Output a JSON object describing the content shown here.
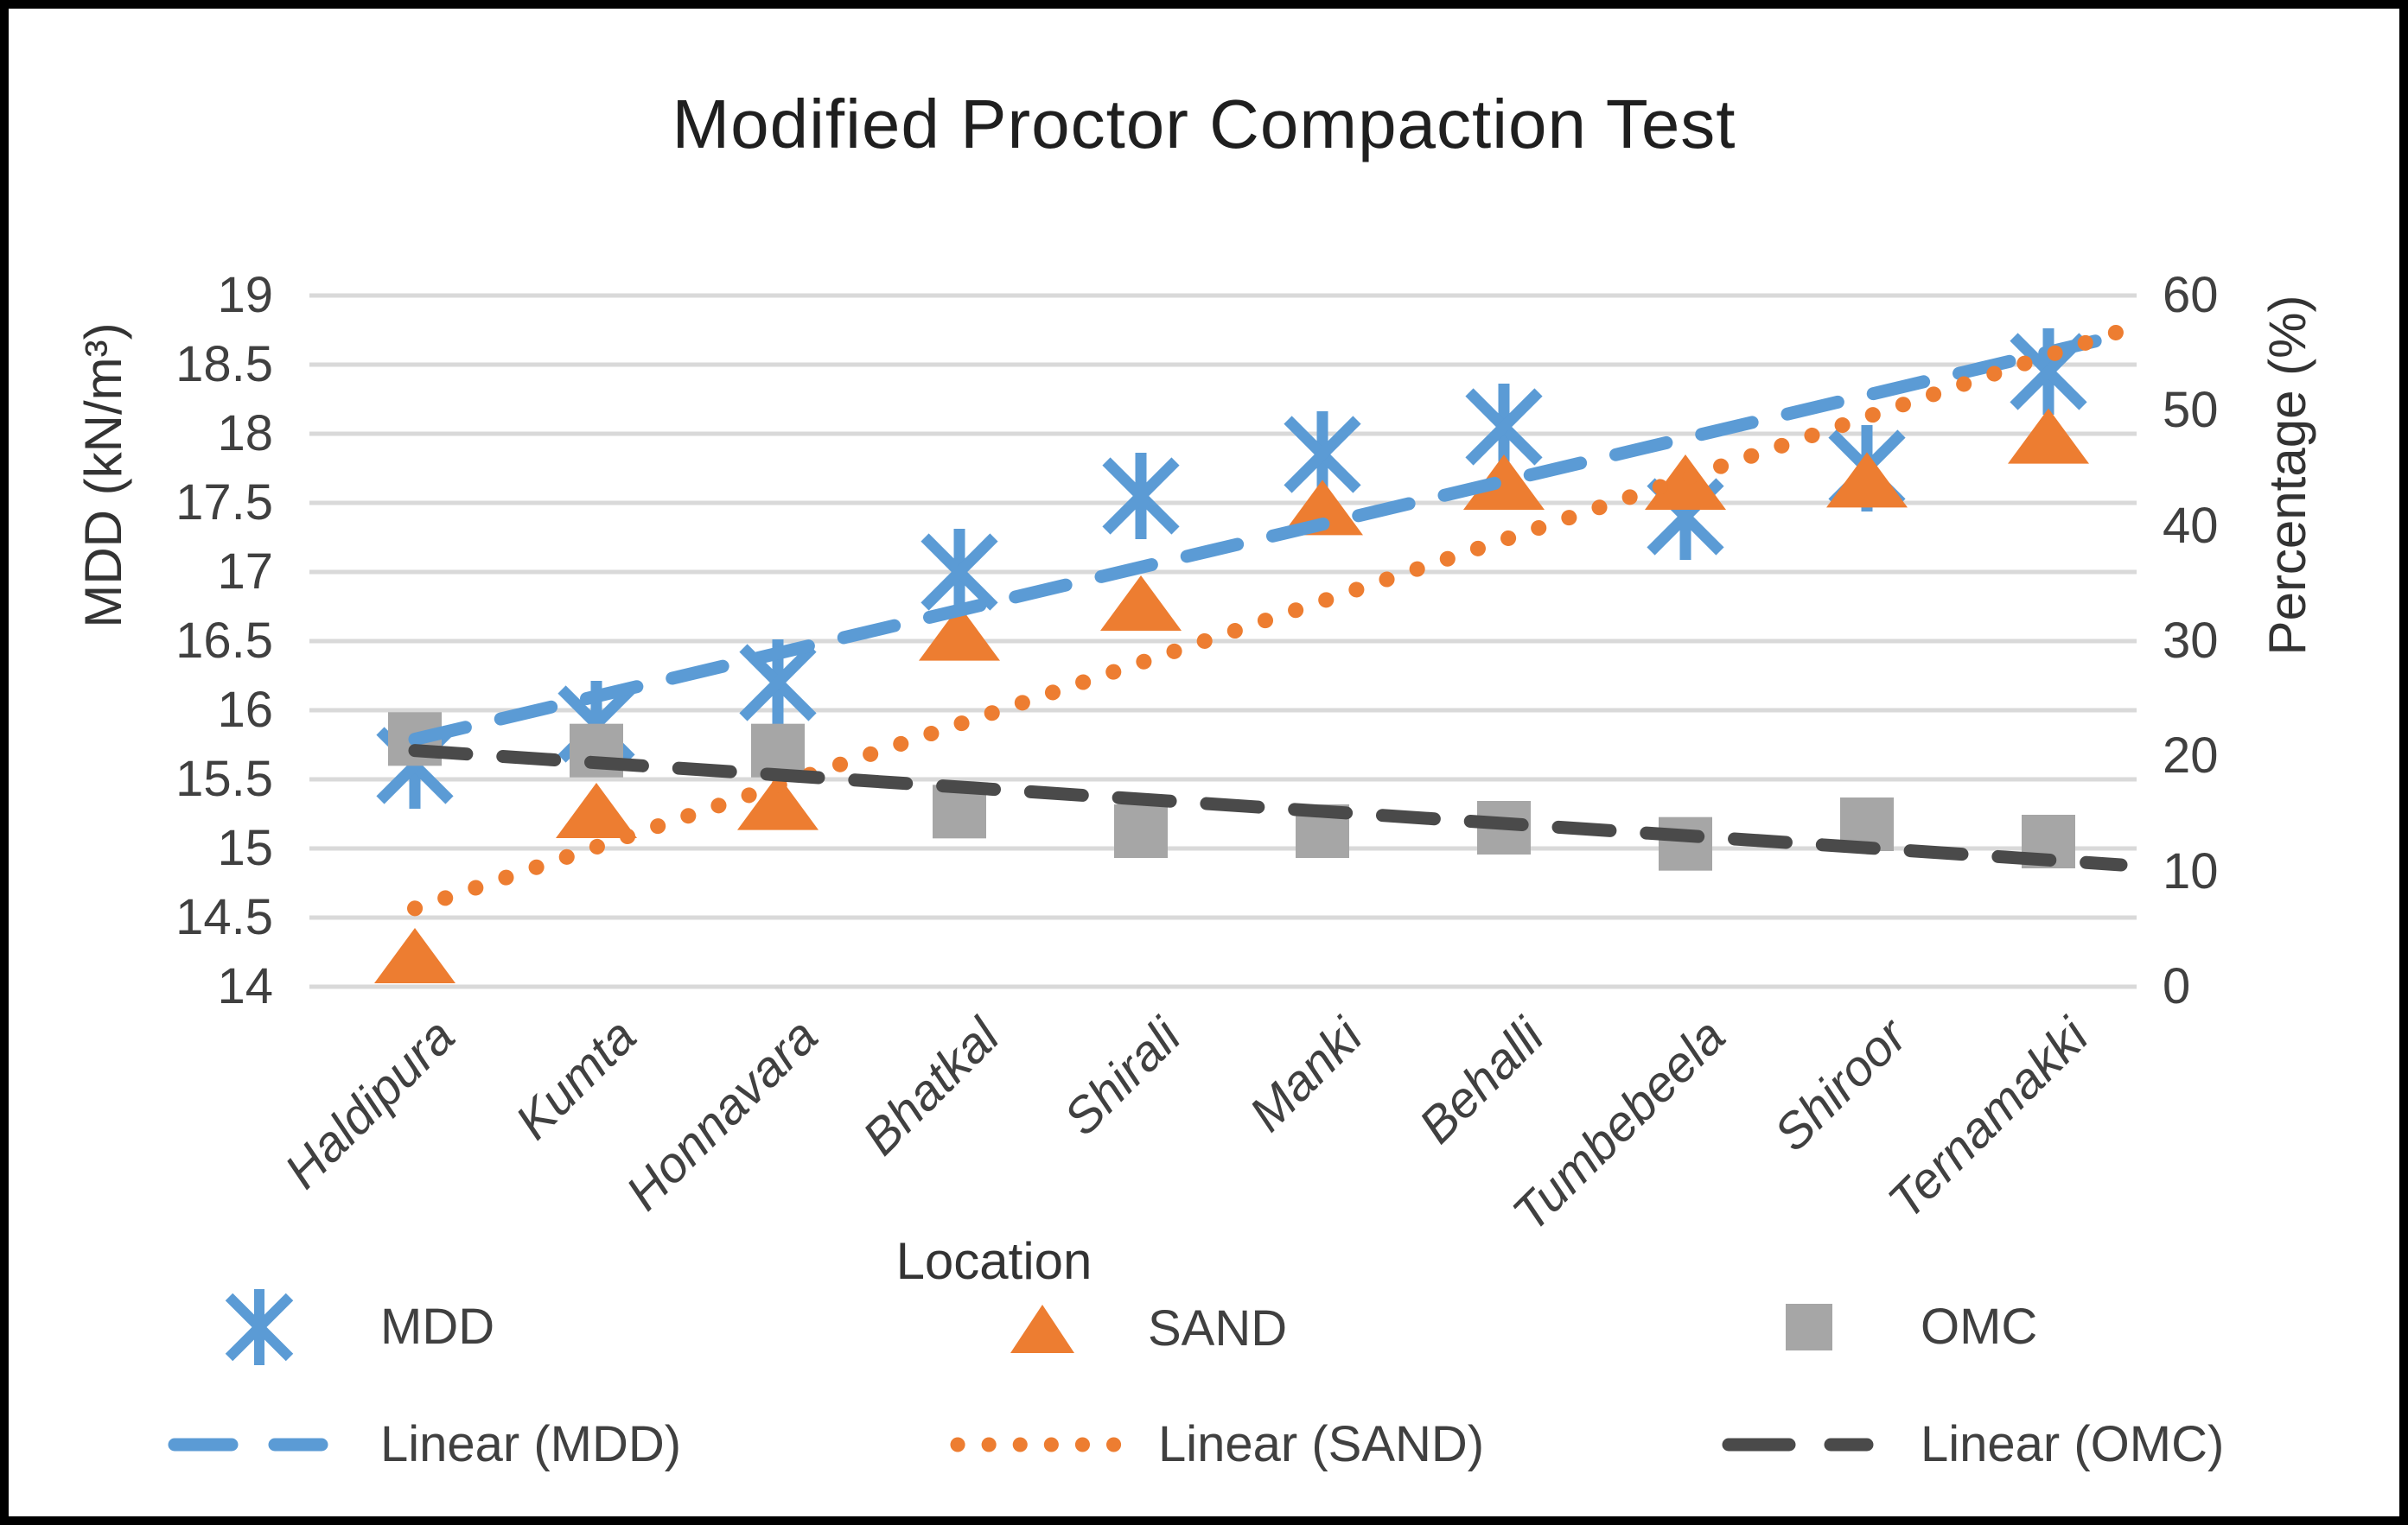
{
  "title": "Modified Proctor Compaction Test",
  "chart_data": {
    "type": "scatter",
    "title": "Modified Proctor Compaction Test",
    "grid": true,
    "legend_position": "bottom",
    "x_axis": {
      "title": "Location",
      "categories": [
        "Haldipura",
        "Kumta",
        "Honnavara",
        "Bhatkal",
        "Shirali",
        "Manki",
        "Behalli",
        "Tumbebeela",
        "Shiroor",
        "Ternamakki"
      ]
    },
    "y_left_axis": {
      "title": "MDD (kN/m³)",
      "min": 14,
      "max": 19,
      "tick_step": 0.5,
      "ticks": [
        "19",
        "18.5",
        "18",
        "17.5",
        "17",
        "16.5",
        "16",
        "15.5",
        "15",
        "14.5",
        "14"
      ]
    },
    "y_right_axis": {
      "title": "Percentage (%)",
      "min": 0,
      "max": 60,
      "tick_step": 10,
      "ticks": [
        "60",
        "50",
        "40",
        "30",
        "20",
        "10",
        "0"
      ]
    },
    "series": [
      {
        "name": "MDD",
        "axis": "left",
        "marker": "star",
        "color": "#5B9BD5",
        "values": [
          15.6,
          15.9,
          16.2,
          17.0,
          17.55,
          17.85,
          18.05,
          17.4,
          17.75,
          18.45
        ]
      },
      {
        "name": "SAND",
        "axis": "right",
        "marker": "triangle",
        "color": "#ED7D31",
        "values": [
          2.7,
          15.3,
          16.0,
          30.7,
          33.3,
          41.6,
          43.8,
          43.8,
          44.0,
          47.8
        ]
      },
      {
        "name": "OMC",
        "axis": "right",
        "marker": "square",
        "color": "#A6A6A6",
        "values": [
          21.5,
          20.5,
          20.5,
          15.2,
          13.5,
          13.5,
          13.8,
          12.4,
          14.1,
          12.6
        ]
      }
    ],
    "trendlines": [
      {
        "name": "Linear (MDD)",
        "series": "MDD",
        "axis": "left",
        "style": "dashed",
        "color": "#5B9BD5",
        "start_value": 15.79,
        "end_value": 18.59
      },
      {
        "name": "Linear (SAND)",
        "series": "SAND",
        "axis": "right",
        "style": "dotted",
        "color": "#ED7D31",
        "start_value": 6.8,
        "end_value": 54.8
      },
      {
        "name": "Linear (OMC)",
        "series": "OMC",
        "axis": "right",
        "style": "dashed",
        "color": "#4A4A4A",
        "start_value": 20.5,
        "end_value": 11.0
      }
    ],
    "colors": {
      "gridline": "#D9D9D9",
      "text": "#404040",
      "title_text": "#1F1F1F"
    }
  }
}
